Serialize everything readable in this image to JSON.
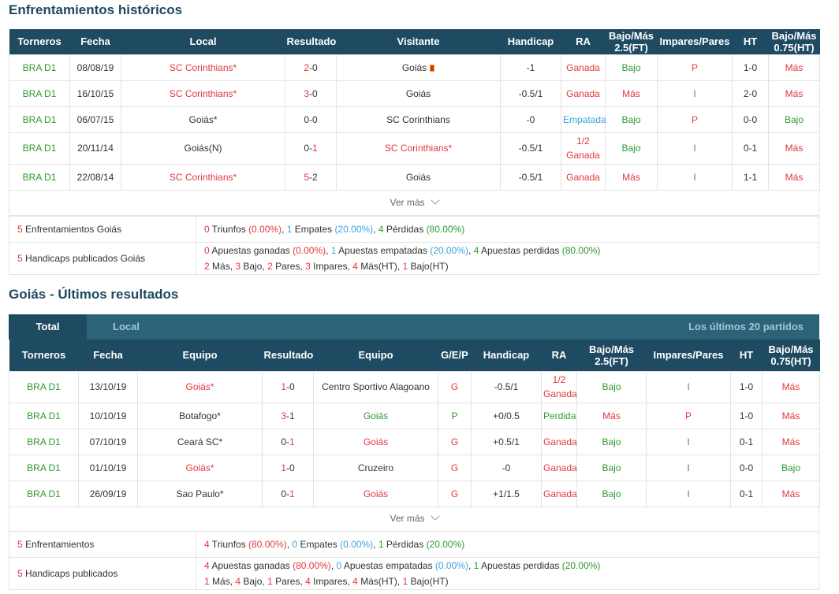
{
  "h2h": {
    "title": "Enfrentamientos históricos",
    "headers": [
      "Torneros",
      "Fecha",
      "Local",
      "Resultado",
      "Visitante",
      "Handicap",
      "RA",
      "Bajo/Más 2.5(FT)",
      "Impares/Pares",
      "HT",
      "Bajo/Más 0.75(HT)"
    ],
    "rows": [
      {
        "league": "BRA D1",
        "date": "08/08/19",
        "home": "SC Corinthians*",
        "score_h": "2",
        "score_a": "0",
        "away": "Goiás",
        "handicap": "-1",
        "ra": "Ganada",
        "ou": "Bajo",
        "oe": "P",
        "ht": "1-0",
        "ou_ht": "Más"
      },
      {
        "league": "BRA D1",
        "date": "16/10/15",
        "home": "SC Corinthians*",
        "score_h": "3",
        "score_a": "0",
        "away": "Goiás",
        "handicap": "-0.5/1",
        "ra": "Ganada",
        "ou": "Más",
        "oe": "I",
        "ht": "2-0",
        "ou_ht": "Más"
      },
      {
        "league": "BRA D1",
        "date": "06/07/15",
        "home": "Goiás*",
        "score_h": "0",
        "score_a": "0",
        "away": "SC Corinthians",
        "handicap": "-0",
        "ra": "Empatada",
        "ou": "Bajo",
        "oe": "P",
        "ht": "0-0",
        "ou_ht": "Bajo"
      },
      {
        "league": "BRA D1",
        "date": "20/11/14",
        "home": "Goiás(N)",
        "score_h": "0",
        "score_a": "1",
        "away": "SC Corinthians*",
        "handicap": "-0.5/1",
        "ra1": "1/2",
        "ra2": "Ganada",
        "ou": "Bajo",
        "oe": "I",
        "ht": "0-1",
        "ou_ht": "Más"
      },
      {
        "league": "BRA D1",
        "date": "22/08/14",
        "home": "SC Corinthians*",
        "score_h": "5",
        "score_a": "2",
        "away": "Goiás",
        "handicap": "-0.5/1",
        "ra": "Ganada",
        "ou": "Más",
        "oe": "I",
        "ht": "1-1",
        "ou_ht": "Más"
      }
    ],
    "ver_mas": "Ver más",
    "summary": {
      "l1_count": "5",
      "l1_label": " Enfrentamientos Goiás",
      "l1_w": "0",
      "l1_w_txt": " Triunfos ",
      "l1_w_pct": "(0.00%)",
      "l1_d": "1",
      "l1_d_txt": " Empates ",
      "l1_d_pct": "(20.00%)",
      "l1_l": "4",
      "l1_l_txt": " Pérdidas ",
      "l1_l_pct": "(80.00%)",
      "l2_count": "5",
      "l2_label": " Handicaps publicados Goiás",
      "l2_w": "0",
      "l2_w_txt": " Apuestas ganadas ",
      "l2_w_pct": "(0.00%)",
      "l2_d": "1",
      "l2_d_txt": " Apuestas empatadas ",
      "l2_d_pct": "(20.00%)",
      "l2_l": "4",
      "l2_l_txt": " Apuestas perdidas ",
      "l2_l_pct": "(80.00%)",
      "l2_b1": "2",
      "l2_b1_txt": " Más, ",
      "l2_b2": "3",
      "l2_b2_txt": " Bajo, ",
      "l2_b3": "2",
      "l2_b3_txt": " Pares, ",
      "l2_b4": "3",
      "l2_b4_txt": " Impares, ",
      "l2_b5": "4",
      "l2_b5_txt": " Más(HT), ",
      "l2_b6": "1",
      "l2_b6_txt": " Bajo(HT)"
    }
  },
  "last": {
    "title": "Goiás - Últimos resultados",
    "tab_total": "Total",
    "tab_local": "Local",
    "tab_right": "Los últimos 20 partidos",
    "headers": [
      "Torneros",
      "Fecha",
      "Equipo",
      "Resultado",
      "Equipo",
      "G/E/P",
      "Handicap",
      "RA",
      "Bajo/Más 2.5(FT)",
      "Impares/Pares",
      "HT",
      "Bajo/Más 0.75(HT)"
    ],
    "rows": [
      {
        "league": "BRA D1",
        "date": "13/10/19",
        "home": "Goiás*",
        "score_h": "1",
        "score_a": "0",
        "away": "Centro Sportivo Alagoano",
        "gep": "G",
        "handicap": "-0.5/1",
        "ra1": "1/2",
        "ra2": "Ganada",
        "ou": "Bajo",
        "oe": "I",
        "ht": "1-0",
        "ou_ht": "Más"
      },
      {
        "league": "BRA D1",
        "date": "10/10/19",
        "home": "Botafogo*",
        "score_h": "3",
        "score_a": "1",
        "away": "Goiás",
        "gep": "P",
        "handicap": "+0/0.5",
        "ra": "Perdida",
        "ou": "Más",
        "oe": "P",
        "ht": "1-0",
        "ou_ht": "Más"
      },
      {
        "league": "BRA D1",
        "date": "07/10/19",
        "home": "Ceará SC*",
        "score_h": "0",
        "score_a": "1",
        "away": "Goiás",
        "gep": "G",
        "handicap": "+0.5/1",
        "ra": "Ganada",
        "ou": "Bajo",
        "oe": "I",
        "ht": "0-1",
        "ou_ht": "Más"
      },
      {
        "league": "BRA D1",
        "date": "01/10/19",
        "home": "Goiás*",
        "score_h": "1",
        "score_a": "0",
        "away": "Cruzeiro",
        "gep": "G",
        "handicap": "-0",
        "ra": "Ganada",
        "ou": "Bajo",
        "oe": "I",
        "ht": "0-0",
        "ou_ht": "Bajo"
      },
      {
        "league": "BRA D1",
        "date": "26/09/19",
        "home": "Sao Paulo*",
        "score_h": "0",
        "score_a": "1",
        "away": "Goiás",
        "gep": "G",
        "handicap": "+1/1.5",
        "ra": "Ganada",
        "ou": "Bajo",
        "oe": "I",
        "ht": "0-1",
        "ou_ht": "Más"
      }
    ],
    "ver_mas": "Ver más",
    "summary": {
      "l1_count": "5",
      "l1_label": " Enfrentamientos",
      "l1_w": "4",
      "l1_w_txt": " Triunfos ",
      "l1_w_pct": "(80.00%)",
      "l1_d": "0",
      "l1_d_txt": " Empates ",
      "l1_d_pct": "(0.00%)",
      "l1_l": "1",
      "l1_l_txt": " Pérdidas ",
      "l1_l_pct": "(20.00%)",
      "l2_count": "5",
      "l2_label": " Handicaps publicados",
      "l2_w": "4",
      "l2_w_txt": " Apuestas ganadas ",
      "l2_w_pct": "(80.00%)",
      "l2_d": "0",
      "l2_d_txt": " Apuestas empatadas ",
      "l2_d_pct": "(0.00%)",
      "l2_l": "1",
      "l2_l_txt": " Apuestas perdidas ",
      "l2_l_pct": "(20.00%)",
      "l2_b1": "1",
      "l2_b1_txt": " Más, ",
      "l2_b2": "4",
      "l2_b2_txt": " Bajo, ",
      "l2_b3": "1",
      "l2_b3_txt": " Pares, ",
      "l2_b4": "4",
      "l2_b4_txt": " Impares, ",
      "l2_b5": "4",
      "l2_b5_txt": " Más(HT), ",
      "l2_b6": "1",
      "l2_b6_txt": " Bajo(HT)"
    }
  },
  "colors": {
    "header_bg": "#1e4b61",
    "tab_bg": "#2d6378",
    "win": "#2e9a2e",
    "loss": "#e0393e",
    "draw": "#3ba4de",
    "title": "#1d4a5f"
  }
}
